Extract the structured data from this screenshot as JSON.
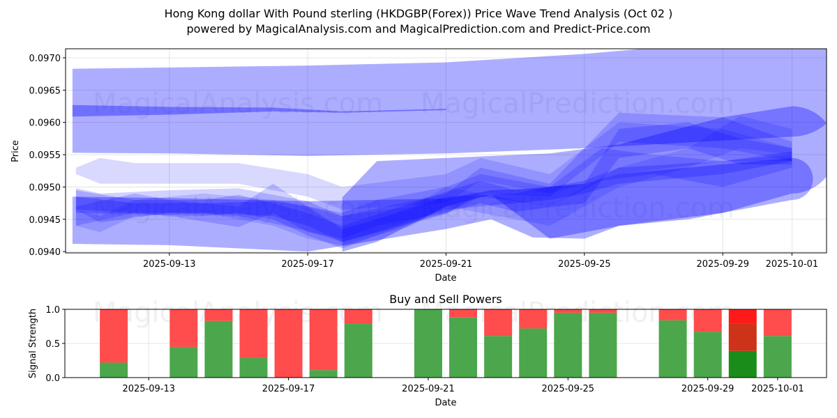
{
  "header": {
    "title": "Hong Kong dollar With Pound sterling (HKDGBP(Forex)) Price Wave Trend Analysis (Oct 02 )",
    "subtitle": "powered by MagicalAnalysis.com and MagicalPrediction.com and Predict-Price.com"
  },
  "watermarks": [
    "MagicalAnalysis.com",
    "MagicalPrediction.com"
  ],
  "colors": {
    "band": "#0000ff",
    "buy": "#4ca64c",
    "sell": "#ff4c4c",
    "buy_strong": "#1a8c1a",
    "sell_strong": "#ff1a1a",
    "sell_overlap": "#cc3319",
    "grid": "#dddddd"
  },
  "chart_data": [
    {
      "type": "area",
      "title": "",
      "xlabel": "Date",
      "ylabel": "Price",
      "xlim": [
        "2025-09-10",
        "2025-10-02"
      ],
      "ylim": [
        0.09398,
        0.09714
      ],
      "grid": true,
      "x_ticks": [
        "2025-09-13",
        "2025-09-17",
        "2025-09-21",
        "2025-09-25",
        "2025-09-29",
        "2025-10-01"
      ],
      "y_ticks": [
        "0.0940",
        "0.0945",
        "0.0950",
        "0.0955",
        "0.0960",
        "0.0965",
        "0.0970"
      ],
      "series": [
        {
          "name": "upper-wide-band",
          "alpha": 0.32,
          "rounded_end": true,
          "x": [
            "2025-09-10.2",
            "2025-09-13",
            "2025-09-17",
            "2025-09-21",
            "2025-09-25",
            "2025-09-29",
            "2025-10-01"
          ],
          "upper": [
            0.09683,
            0.09685,
            0.09688,
            0.09693,
            0.09706,
            0.09725,
            0.09738
          ],
          "lower": [
            0.09553,
            0.09552,
            0.09548,
            0.09552,
            0.0956,
            0.09572,
            0.09578
          ]
        },
        {
          "name": "upper-thin-band",
          "alpha": 0.35,
          "x": [
            "2025-09-10.2",
            "2025-09-13",
            "2025-09-16",
            "2025-09-18",
            "2025-09-21"
          ],
          "upper": [
            0.09627,
            0.09624,
            0.09623,
            0.09617,
            0.09621
          ],
          "lower": [
            0.09609,
            0.09612,
            0.09617,
            0.09615,
            0.09619
          ]
        },
        {
          "name": "mid-wide-band",
          "alpha": 0.32,
          "rounded_end": true,
          "x": [
            "2025-09-18",
            "2025-09-19",
            "2025-09-21",
            "2025-09-22.3",
            "2025-09-24",
            "2025-09-26",
            "2025-09-29",
            "2025-10-01"
          ],
          "upper": [
            0.09484,
            0.0954,
            0.09545,
            0.09548,
            0.09552,
            0.09566,
            0.09608,
            0.09625
          ],
          "lower": [
            0.094,
            0.09415,
            0.0947,
            0.09488,
            0.0942,
            0.0944,
            0.0946,
            0.0949
          ]
        },
        {
          "name": "lower-wide-band",
          "alpha": 0.32,
          "rounded_end": true,
          "x": [
            "2025-09-10.2",
            "2025-09-13",
            "2025-09-17",
            "2025-09-21",
            "2025-09-22.3",
            "2025-09-23.5",
            "2025-09-25",
            "2025-09-26",
            "2025-09-28",
            "2025-10-01"
          ],
          "upper": [
            0.09485,
            0.09483,
            0.09478,
            0.09482,
            0.09495,
            0.09498,
            0.09505,
            0.0952,
            0.0953,
            0.09545
          ],
          "lower": [
            0.09412,
            0.0941,
            0.094,
            0.09435,
            0.0945,
            0.09422,
            0.0942,
            0.0944,
            0.0945,
            0.0948
          ]
        },
        {
          "name": "wave-1",
          "alpha": 0.15,
          "x": [
            "2025-09-10.3",
            "2025-09-11",
            "2025-09-12",
            "2025-09-15",
            "2025-09-17",
            "2025-09-18",
            "2025-09-21",
            "2025-09-22",
            "2025-09-24",
            "2025-09-26",
            "2025-09-29",
            "2025-10-01"
          ],
          "upper": [
            0.0953,
            0.09545,
            0.09537,
            0.09537,
            0.0952,
            0.095,
            0.0952,
            0.09545,
            0.0952,
            0.096,
            0.0959,
            0.0956
          ],
          "lower": [
            0.0952,
            0.09505,
            0.09505,
            0.09505,
            0.09485,
            0.09465,
            0.09475,
            0.0951,
            0.0949,
            0.0952,
            0.0954,
            0.0954
          ]
        },
        {
          "name": "wave-2",
          "alpha": 0.18,
          "x": [
            "2025-09-10.3",
            "2025-09-11",
            "2025-09-13",
            "2025-09-15",
            "2025-09-17",
            "2025-09-18",
            "2025-09-21",
            "2025-09-22",
            "2025-09-24",
            "2025-09-26",
            "2025-09-29",
            "2025-10-01"
          ],
          "upper": [
            0.09498,
            0.0949,
            0.09495,
            0.09498,
            0.09478,
            0.09455,
            0.0949,
            0.0953,
            0.09505,
            0.09615,
            0.09608,
            0.0957
          ],
          "lower": [
            0.09465,
            0.09445,
            0.0946,
            0.09455,
            0.09432,
            0.09415,
            0.09458,
            0.0949,
            0.09485,
            0.0957,
            0.0956,
            0.0954
          ]
        },
        {
          "name": "wave-3",
          "alpha": 0.2,
          "x": [
            "2025-09-10.3",
            "2025-09-12",
            "2025-09-14",
            "2025-09-15",
            "2025-09-16",
            "2025-09-17",
            "2025-09-18",
            "2025-09-20",
            "2025-09-22",
            "2025-09-23",
            "2025-09-25",
            "2025-09-26",
            "2025-09-28",
            "2025-09-29.5",
            "2025-10-01"
          ],
          "upper": [
            0.09495,
            0.0948,
            0.0948,
            0.09488,
            0.09475,
            0.0946,
            0.0944,
            0.09475,
            0.0951,
            0.09495,
            0.09505,
            0.0959,
            0.096,
            0.09575,
            0.0956
          ],
          "lower": [
            0.0946,
            0.09458,
            0.09455,
            0.0946,
            0.0945,
            0.09425,
            0.09405,
            0.09445,
            0.09475,
            0.09462,
            0.09475,
            0.09545,
            0.0956,
            0.09535,
            0.09535
          ]
        },
        {
          "name": "wave-4",
          "alpha": 0.22,
          "x": [
            "2025-09-10.3",
            "2025-09-12",
            "2025-09-14",
            "2025-09-16",
            "2025-09-17",
            "2025-09-18",
            "2025-09-19",
            "2025-09-21",
            "2025-09-23",
            "2025-09-24",
            "2025-09-25",
            "2025-09-26",
            "2025-09-29",
            "2025-10-01"
          ],
          "upper": [
            0.09485,
            0.09475,
            0.09475,
            0.09478,
            0.0947,
            0.09435,
            0.0945,
            0.09485,
            0.0949,
            0.095,
            0.0951,
            0.0953,
            0.0954,
            0.09555
          ],
          "lower": [
            0.09465,
            0.0946,
            0.0946,
            0.09455,
            0.0944,
            0.09415,
            0.0943,
            0.09465,
            0.09475,
            0.0948,
            0.0949,
            0.09505,
            0.0952,
            0.0954
          ]
        },
        {
          "name": "wave-5",
          "alpha": 0.18,
          "x": [
            "2025-09-10.3",
            "2025-09-12",
            "2025-09-13",
            "2025-09-15",
            "2025-09-16",
            "2025-09-17",
            "2025-09-18",
            "2025-09-19",
            "2025-09-21",
            "2025-09-22",
            "2025-09-24",
            "2025-09-25.5",
            "2025-09-27",
            "2025-09-29",
            "2025-10-01"
          ],
          "upper": [
            0.0947,
            0.0949,
            0.0948,
            0.0947,
            0.09505,
            0.0947,
            0.0946,
            0.0948,
            0.095,
            0.0952,
            0.095,
            0.0956,
            0.0955,
            0.0954,
            0.0955
          ],
          "lower": [
            0.0944,
            0.0946,
            0.09455,
            0.09438,
            0.0946,
            0.0943,
            0.0942,
            0.0944,
            0.0946,
            0.09485,
            0.0947,
            0.0951,
            0.0952,
            0.095,
            0.0953
          ]
        },
        {
          "name": "wave-6",
          "alpha": 0.14,
          "x": [
            "2025-09-10.3",
            "2025-09-11",
            "2025-09-12",
            "2025-09-14",
            "2025-09-16",
            "2025-09-17",
            "2025-09-18",
            "2025-09-20",
            "2025-09-21",
            "2025-09-22",
            "2025-09-24",
            "2025-09-26",
            "2025-09-28",
            "2025-09-29.5",
            "2025-10-01"
          ],
          "upper": [
            0.09465,
            0.09455,
            0.0948,
            0.0949,
            0.0948,
            0.0947,
            0.09455,
            0.0947,
            0.095,
            0.0949,
            0.0947,
            0.0953,
            0.0956,
            0.0961,
            0.0959
          ],
          "lower": [
            0.0944,
            0.0943,
            0.09455,
            0.0946,
            0.0944,
            0.0942,
            0.0941,
            0.0944,
            0.0947,
            0.0946,
            0.0944,
            0.095,
            0.0953,
            0.0956,
            0.0955
          ]
        }
      ]
    },
    {
      "type": "bar",
      "title": "Buy and Sell Powers",
      "xlabel": "Date",
      "ylabel": "Signal Strength",
      "xlim": [
        "2025-09-10.6",
        "2025-10-02.4"
      ],
      "ylim": [
        0.0,
        1.0
      ],
      "grid": true,
      "x_ticks": [
        "2025-09-13",
        "2025-09-17",
        "2025-09-21",
        "2025-09-25",
        "2025-09-29",
        "2025-10-01"
      ],
      "y_ticks": [
        "0.0",
        "0.5",
        "1.0"
      ],
      "categories": [
        "2025-09-12",
        "2025-09-14",
        "2025-09-15",
        "2025-09-16",
        "2025-09-17",
        "2025-09-18",
        "2025-09-19",
        "2025-09-21",
        "2025-09-22",
        "2025-09-23",
        "2025-09-24",
        "2025-09-25",
        "2025-09-26",
        "2025-09-28",
        "2025-09-29",
        "2025-09-30",
        "2025-10-01"
      ],
      "series": [
        {
          "name": "Buy",
          "values": [
            0.22,
            0.45,
            0.83,
            0.29,
            0.0,
            0.11,
            0.79,
            1.0,
            0.88,
            0.61,
            0.72,
            0.95,
            0.95,
            0.84,
            0.67,
            0.39,
            0.61
          ]
        },
        {
          "name": "Sell",
          "values": [
            0.78,
            0.55,
            0.17,
            0.71,
            1.0,
            0.89,
            0.21,
            0.0,
            0.12,
            0.39,
            0.28,
            0.05,
            0.05,
            0.16,
            0.33,
            0.61,
            0.39
          ]
        }
      ],
      "highlight": {
        "date": "2025-09-30",
        "buy": 0.39,
        "overlap_to": 0.79,
        "sell_top": 1.0
      }
    }
  ]
}
